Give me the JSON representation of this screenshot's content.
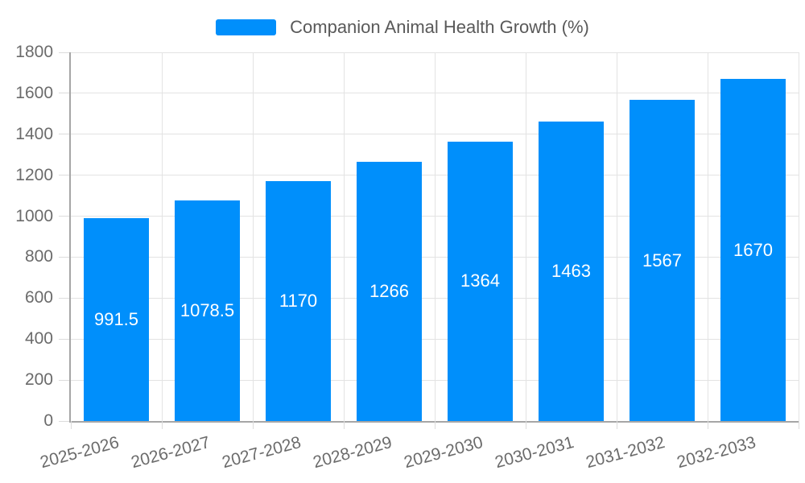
{
  "legend": {
    "position": "top",
    "swatch_color": "#008FFB"
  },
  "chart_data": {
    "type": "bar",
    "title": "Companion Animal Health Growth (%)",
    "categories": [
      "2025-2026",
      "2026-2027",
      "2027-2028",
      "2028-2029",
      "2029-2030",
      "2030-2031",
      "2031-2032",
      "2032-2033"
    ],
    "series": [
      {
        "name": "Companion Animal Health Growth (%)",
        "values": [
          991.5,
          1078.5,
          1170,
          1266,
          1364,
          1463,
          1567,
          1670
        ],
        "color": "#008FFB"
      }
    ],
    "data_labels": [
      "991.5",
      "1078.5",
      "1170",
      "1266",
      "1364",
      "1463",
      "1567",
      "1670"
    ],
    "data_label_color": "#FFFFFF",
    "xlabel": "",
    "ylabel": "",
    "ylim": [
      0,
      1800
    ],
    "ytick_interval": 200,
    "yticks": [
      "0",
      "200",
      "400",
      "600",
      "800",
      "1000",
      "1200",
      "1400",
      "1600",
      "1800"
    ],
    "grid": true,
    "legend_position": "top",
    "x_label_rotation_deg": -15
  },
  "colors": {
    "background": "#FFFFFF",
    "bar": "#008FFB",
    "axis_line": "#A6A6A6",
    "gridline": "#E3E3E3",
    "tick": "#DCDCDC",
    "axis_label_text": "#6B6B6B",
    "legend_text": "#595959",
    "value_label_text": "#FFFFFF"
  }
}
